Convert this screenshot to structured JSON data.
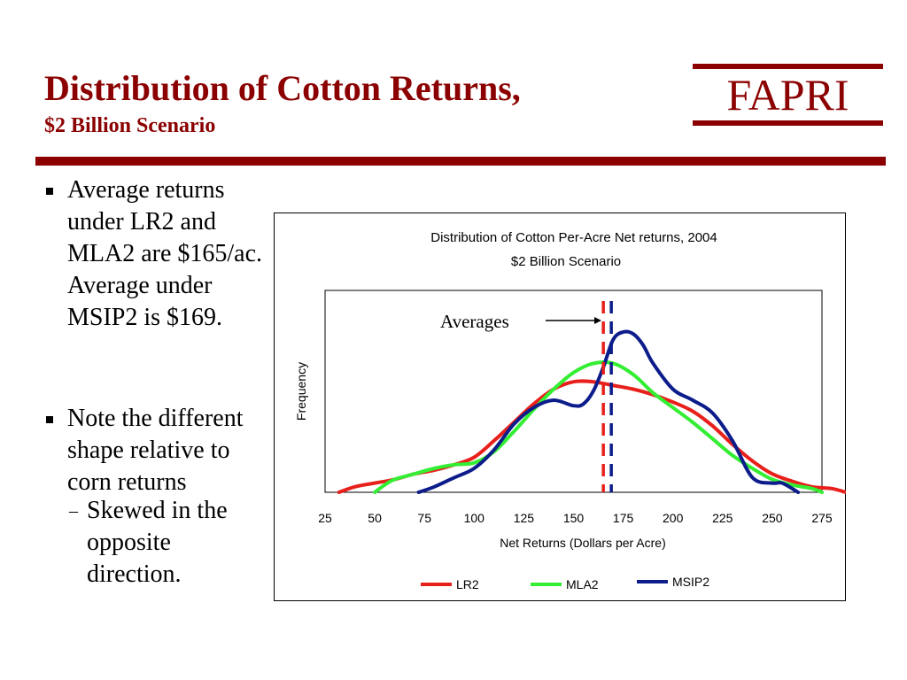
{
  "slide": {
    "title": "Distribution of Cotton Returns,",
    "subtitle": "$2 Billion Scenario",
    "logo": "FAPRI",
    "bullets": [
      "Average returns under LR2 and MLA2 are $165/ac. Average under MSIP2 is $169.",
      "Note the different shape relative to corn returns"
    ],
    "sub_bullet": "Skewed in the opposite direction."
  },
  "chart_data": {
    "type": "line",
    "title": "Distribution of Cotton Per-Acre Net returns, 2004",
    "subtitle": "$2 Billion Scenario",
    "xlabel": "Net Returns (Dollars per Acre)",
    "ylabel": "Frequency",
    "xlim": [
      25,
      275
    ],
    "ylim": [
      0,
      1
    ],
    "x_ticks": [
      "25",
      "50",
      "75",
      "100",
      "125",
      "150",
      "175",
      "200",
      "225",
      "250",
      "275"
    ],
    "grid": false,
    "legend_position": "bottom",
    "annotation": "Averages",
    "averages": [
      {
        "series": "LR2",
        "value": 165,
        "color": "#e8201c"
      },
      {
        "series": "MSIP2",
        "value": 169,
        "color": "#0c1c8a"
      }
    ],
    "series": [
      {
        "name": "LR2",
        "color": "#e8201c",
        "points": [
          [
            32,
            0.0
          ],
          [
            40,
            0.03
          ],
          [
            50,
            0.05
          ],
          [
            60,
            0.07
          ],
          [
            70,
            0.1
          ],
          [
            80,
            0.12
          ],
          [
            90,
            0.15
          ],
          [
            100,
            0.19
          ],
          [
            110,
            0.28
          ],
          [
            120,
            0.38
          ],
          [
            130,
            0.48
          ],
          [
            140,
            0.56
          ],
          [
            150,
            0.6
          ],
          [
            160,
            0.6
          ],
          [
            170,
            0.58
          ],
          [
            180,
            0.56
          ],
          [
            190,
            0.53
          ],
          [
            200,
            0.49
          ],
          [
            210,
            0.44
          ],
          [
            220,
            0.36
          ],
          [
            230,
            0.26
          ],
          [
            240,
            0.17
          ],
          [
            250,
            0.1
          ],
          [
            260,
            0.06
          ],
          [
            270,
            0.03
          ],
          [
            280,
            0.02
          ],
          [
            287,
            0.0
          ]
        ]
      },
      {
        "name": "MLA2",
        "color": "#33ee33",
        "points": [
          [
            50,
            0.0
          ],
          [
            55,
            0.04
          ],
          [
            60,
            0.07
          ],
          [
            70,
            0.1
          ],
          [
            80,
            0.13
          ],
          [
            90,
            0.15
          ],
          [
            100,
            0.16
          ],
          [
            110,
            0.22
          ],
          [
            120,
            0.33
          ],
          [
            130,
            0.45
          ],
          [
            140,
            0.56
          ],
          [
            150,
            0.65
          ],
          [
            160,
            0.7
          ],
          [
            170,
            0.7
          ],
          [
            180,
            0.64
          ],
          [
            190,
            0.54
          ],
          [
            200,
            0.46
          ],
          [
            210,
            0.38
          ],
          [
            220,
            0.29
          ],
          [
            230,
            0.2
          ],
          [
            240,
            0.13
          ],
          [
            250,
            0.07
          ],
          [
            260,
            0.04
          ],
          [
            270,
            0.02
          ],
          [
            275,
            0.0
          ]
        ]
      },
      {
        "name": "MSIP2",
        "color": "#0c1c8a",
        "points": [
          [
            72,
            0.0
          ],
          [
            80,
            0.03
          ],
          [
            90,
            0.08
          ],
          [
            100,
            0.13
          ],
          [
            110,
            0.23
          ],
          [
            120,
            0.37
          ],
          [
            130,
            0.46
          ],
          [
            140,
            0.5
          ],
          [
            150,
            0.47
          ],
          [
            155,
            0.48
          ],
          [
            160,
            0.55
          ],
          [
            165,
            0.68
          ],
          [
            170,
            0.83
          ],
          [
            175,
            0.87
          ],
          [
            180,
            0.86
          ],
          [
            185,
            0.8
          ],
          [
            190,
            0.7
          ],
          [
            200,
            0.56
          ],
          [
            210,
            0.5
          ],
          [
            220,
            0.43
          ],
          [
            230,
            0.28
          ],
          [
            240,
            0.08
          ],
          [
            250,
            0.05
          ],
          [
            255,
            0.05
          ],
          [
            263,
            0.0
          ]
        ]
      }
    ]
  }
}
